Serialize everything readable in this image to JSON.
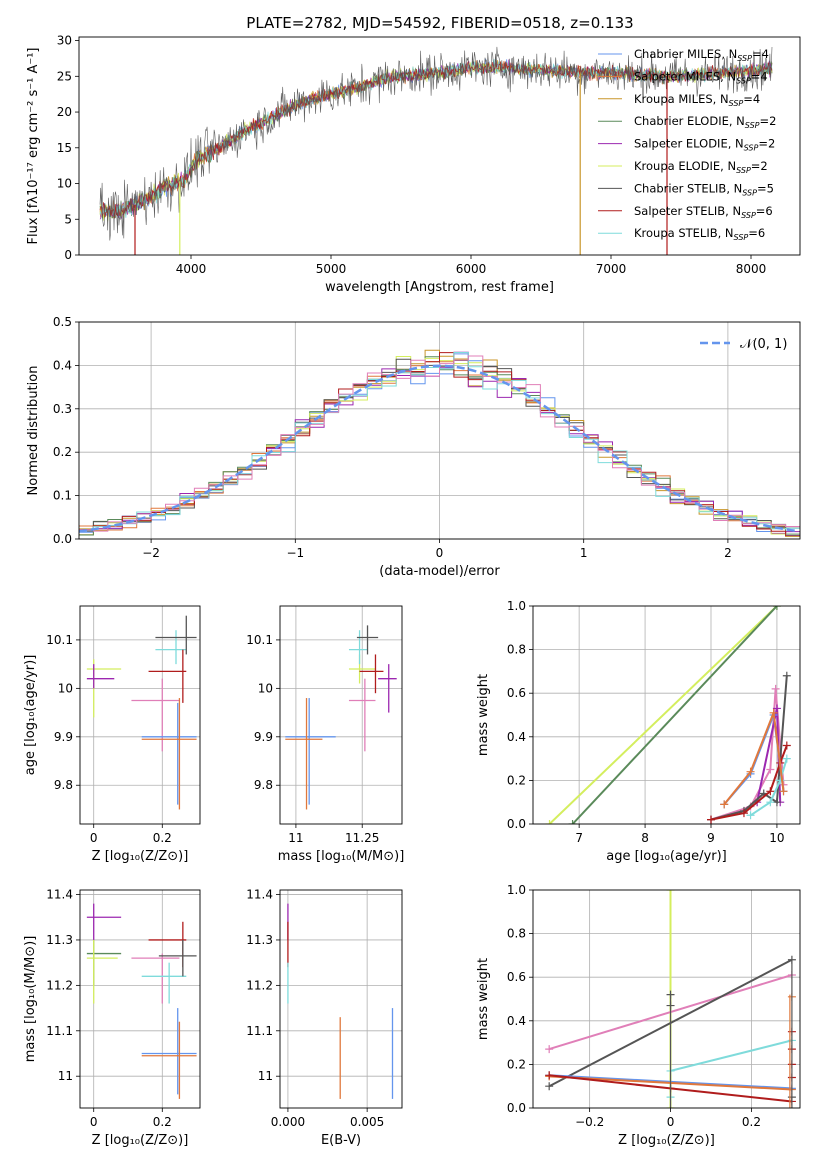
{
  "figure": {
    "title": "PLATE=2782, MJD=54592, FIBERID=0518, z=0.133"
  },
  "colors": {
    "chab_miles": "#6495ed",
    "salp_miles": "#e0783c",
    "krou_miles": "#c8962a",
    "chab_elodie": "#5a8a5a",
    "salp_elodie": "#9c27b0",
    "krou_elodie": "#d4ee5e",
    "chab_stelib": "#555555",
    "salp_stelib": "#b01c1c",
    "krou_stelib": "#7fdbdb",
    "pink": "#e07fb8",
    "normal_curve": "#6495ed"
  },
  "chart_data": [
    {
      "id": "spectrum",
      "type": "line",
      "xlabel": "wavelength [Angstrom, rest frame]",
      "ylabel": "Flux [fλ10⁻¹⁷ erg cm⁻² s⁻¹ A⁻¹]",
      "xlim": [
        3200,
        8350
      ],
      "ylim": [
        0,
        30.5
      ],
      "xticks": [
        4000,
        5000,
        6000,
        7000,
        8000
      ],
      "yticks": [
        0,
        5,
        10,
        15,
        20,
        25,
        30
      ],
      "grid": false,
      "legend_position": "top-right",
      "legend": [
        {
          "pre": "Chabrier MILES, N",
          "post": "=4",
          "color": "chab_miles"
        },
        {
          "pre": "Salpeter MILES, N",
          "post": "=4",
          "color": "salp_miles"
        },
        {
          "pre": "Kroupa MILES, N",
          "post": "=4",
          "color": "krou_miles"
        },
        {
          "pre": "Chabrier ELODIE, N",
          "post": "=2",
          "color": "chab_elodie"
        },
        {
          "pre": "Salpeter ELODIE, N",
          "post": "=2",
          "color": "salp_elodie"
        },
        {
          "pre": "Kroupa ELODIE, N",
          "post": "=2",
          "color": "krou_elodie"
        },
        {
          "pre": "Chabrier STELIB, N",
          "post": "=5",
          "color": "chab_stelib"
        },
        {
          "pre": "Salpeter STELIB, N",
          "post": "=6",
          "color": "salp_stelib"
        },
        {
          "pre": "Kroupa STELIB, N",
          "post": "=6",
          "color": "krou_stelib"
        }
      ],
      "continuum": [
        [
          3350,
          6.0
        ],
        [
          3500,
          6.2
        ],
        [
          3600,
          7.0
        ],
        [
          3700,
          8.0
        ],
        [
          3800,
          9.5
        ],
        [
          3950,
          10.5
        ],
        [
          4050,
          13.5
        ],
        [
          4200,
          15.0
        ],
        [
          4400,
          17.5
        ],
        [
          4600,
          19.5
        ],
        [
          4800,
          21.5
        ],
        [
          5000,
          22.5
        ],
        [
          5200,
          23.5
        ],
        [
          5400,
          24.8
        ],
        [
          5600,
          25.2
        ],
        [
          5800,
          25.6
        ],
        [
          6000,
          26.2
        ],
        [
          6200,
          26.3
        ],
        [
          6400,
          26.0
        ],
        [
          6600,
          25.8
        ],
        [
          6800,
          25.5
        ],
        [
          7000,
          25.5
        ],
        [
          7200,
          25.2
        ],
        [
          7400,
          25.0
        ],
        [
          7600,
          25.2
        ],
        [
          7800,
          25.5
        ],
        [
          8000,
          25.8
        ],
        [
          8150,
          26.2
        ]
      ],
      "drops": [
        {
          "x": 3600,
          "color": "salp_stelib"
        },
        {
          "x": 3920,
          "color": "krou_elodie"
        },
        {
          "x": 6780,
          "color": "krou_miles"
        },
        {
          "x": 7400,
          "color": "salp_stelib"
        }
      ]
    },
    {
      "id": "residuals",
      "type": "histogram",
      "xlabel": "(data-model)/error",
      "ylabel": "Normed distribution",
      "xlim": [
        -2.5,
        2.5
      ],
      "ylim": [
        0,
        0.5
      ],
      "xticks": [
        -2,
        -1,
        0,
        1,
        2
      ],
      "yticks": [
        0.0,
        0.1,
        0.2,
        0.3,
        0.4,
        0.5
      ],
      "grid": true,
      "legend": "𝒩(0, 1)",
      "legend_position": "top-right",
      "bin_width": 0.1,
      "reference_curve": "normal(0,1)"
    },
    {
      "id": "age_vs_Z",
      "type": "errorbar",
      "xlabel": "Z [log₁₀(Z/Z⊙)]",
      "ylabel": "age  [log₁₀(age/yr)]",
      "xlim": [
        -0.04,
        0.31
      ],
      "ylim": [
        9.72,
        10.17
      ],
      "xticks": [
        0.0,
        0.2
      ],
      "yticks": [
        9.8,
        9.9,
        10.0,
        10.1
      ],
      "grid": true,
      "points": [
        {
          "x": 0.0,
          "xlo": -0.02,
          "xhi": 0.08,
          "y": 10.04,
          "ylo": 9.94,
          "yhi": 10.06,
          "color": "krou_elodie"
        },
        {
          "x": 0.0,
          "xlo": -0.02,
          "xhi": 0.06,
          "y": 10.02,
          "ylo": 10.0,
          "yhi": 10.05,
          "color": "salp_elodie"
        },
        {
          "x": 0.2,
          "xlo": 0.11,
          "xhi": 0.25,
          "y": 9.975,
          "ylo": 9.87,
          "yhi": 10.02,
          "color": "pink"
        },
        {
          "x": 0.24,
          "xlo": 0.18,
          "xhi": 0.27,
          "y": 10.08,
          "ylo": 10.05,
          "yhi": 10.12,
          "color": "krou_stelib"
        },
        {
          "x": 0.27,
          "xlo": 0.18,
          "xhi": 0.3,
          "y": 10.105,
          "ylo": 10.07,
          "yhi": 10.15,
          "color": "chab_stelib"
        },
        {
          "x": 0.26,
          "xlo": 0.16,
          "xhi": 0.27,
          "y": 10.035,
          "ylo": 9.97,
          "yhi": 10.08,
          "color": "salp_stelib"
        },
        {
          "x": 0.245,
          "xlo": 0.14,
          "xhi": 0.3,
          "y": 9.9,
          "ylo": 9.76,
          "yhi": 9.97,
          "color": "chab_miles"
        },
        {
          "x": 0.25,
          "xlo": 0.14,
          "xhi": 0.3,
          "y": 9.895,
          "ylo": 9.75,
          "yhi": 9.98,
          "color": "salp_miles"
        }
      ]
    },
    {
      "id": "age_vs_mass",
      "type": "errorbar",
      "xlabel": "mass [log₁₀(M/M⊙)]",
      "ylabel": "",
      "xlim": [
        10.94,
        11.4
      ],
      "ylim": [
        9.72,
        10.17
      ],
      "xticks": [
        11.0,
        11.25
      ],
      "yticks": [
        9.8,
        9.9,
        10.0,
        10.1
      ],
      "grid": true,
      "points": [
        {
          "x": 11.05,
          "xlo": 10.96,
          "xhi": 11.15,
          "y": 9.9,
          "ylo": 9.76,
          "yhi": 9.98,
          "color": "chab_miles"
        },
        {
          "x": 11.04,
          "xlo": 10.96,
          "xhi": 11.1,
          "y": 9.895,
          "ylo": 9.75,
          "yhi": 9.98,
          "color": "salp_miles"
        },
        {
          "x": 11.26,
          "xlo": 11.2,
          "xhi": 11.3,
          "y": 9.975,
          "ylo": 9.87,
          "yhi": 10.02,
          "color": "pink"
        },
        {
          "x": 11.24,
          "xlo": 11.2,
          "xhi": 11.3,
          "y": 10.04,
          "ylo": 10.01,
          "yhi": 10.07,
          "color": "krou_elodie"
        },
        {
          "x": 11.24,
          "xlo": 11.2,
          "xhi": 11.27,
          "y": 10.08,
          "ylo": 10.05,
          "yhi": 10.12,
          "color": "krou_stelib"
        },
        {
          "x": 11.27,
          "xlo": 11.23,
          "xhi": 11.31,
          "y": 10.105,
          "ylo": 10.07,
          "yhi": 10.13,
          "color": "chab_stelib"
        },
        {
          "x": 11.3,
          "xlo": 11.24,
          "xhi": 11.33,
          "y": 10.035,
          "ylo": 9.99,
          "yhi": 10.07,
          "color": "salp_stelib"
        },
        {
          "x": 11.35,
          "xlo": 11.31,
          "xhi": 11.38,
          "y": 10.02,
          "ylo": 9.95,
          "yhi": 10.05,
          "color": "salp_elodie"
        }
      ]
    },
    {
      "id": "weight_vs_age",
      "type": "line",
      "xlabel": "age  [log₁₀(age/yr)]",
      "ylabel": "mass weight",
      "xlim": [
        6.3,
        10.35
      ],
      "ylim": [
        0,
        1
      ],
      "xticks": [
        7,
        8,
        9,
        10
      ],
      "yticks": [
        0.0,
        0.2,
        0.4,
        0.6,
        0.8,
        1.0
      ],
      "grid": true,
      "series": [
        {
          "color": "krou_elodie",
          "points": [
            [
              6.55,
              0.0
            ],
            [
              10.0,
              1.0
            ]
          ]
        },
        {
          "color": "chab_elodie",
          "points": [
            [
              6.9,
              0.0
            ],
            [
              10.0,
              1.0
            ]
          ]
        },
        {
          "color": "pink",
          "points": [
            [
              9.0,
              0.02
            ],
            [
              9.6,
              0.08
            ],
            [
              9.9,
              0.25
            ],
            [
              9.98,
              0.62
            ],
            [
              10.1,
              0.18
            ]
          ]
        },
        {
          "color": "salp_elodie",
          "points": [
            [
              9.7,
              0.1
            ],
            [
              10.0,
              0.53
            ],
            [
              10.05,
              0.1
            ]
          ]
        },
        {
          "color": "chab_stelib",
          "points": [
            [
              9.0,
              0.02
            ],
            [
              9.5,
              0.06
            ],
            [
              9.8,
              0.14
            ],
            [
              10.0,
              0.1
            ],
            [
              10.15,
              0.68
            ]
          ]
        },
        {
          "color": "salp_stelib",
          "points": [
            [
              9.0,
              0.02
            ],
            [
              9.5,
              0.05
            ],
            [
              9.9,
              0.15
            ],
            [
              10.05,
              0.28
            ],
            [
              10.15,
              0.36
            ]
          ]
        },
        {
          "color": "krou_stelib",
          "points": [
            [
              9.6,
              0.04
            ],
            [
              9.9,
              0.1
            ],
            [
              10.05,
              0.2
            ],
            [
              10.15,
              0.3
            ]
          ]
        },
        {
          "color": "chab_miles",
          "points": [
            [
              9.2,
              0.09
            ],
            [
              9.6,
              0.23
            ],
            [
              9.95,
              0.5
            ],
            [
              10.1,
              0.15
            ]
          ]
        },
        {
          "color": "salp_miles",
          "points": [
            [
              9.2,
              0.09
            ],
            [
              9.6,
              0.24
            ],
            [
              9.95,
              0.51
            ],
            [
              10.1,
              0.15
            ]
          ]
        }
      ]
    },
    {
      "id": "mass_vs_Z",
      "type": "errorbar",
      "xlabel": "Z [log₁₀(Z/Z⊙)]",
      "ylabel": "mass [log₁₀(M/M⊙)]",
      "xlim": [
        -0.04,
        0.31
      ],
      "ylim": [
        10.93,
        11.41
      ],
      "xticks": [
        0.0,
        0.2
      ],
      "yticks": [
        11.0,
        11.1,
        11.2,
        11.3,
        11.4
      ],
      "grid": true,
      "points": [
        {
          "x": 0.0,
          "xlo": -0.02,
          "xhi": 0.08,
          "y": 11.35,
          "ylo": 11.3,
          "yhi": 11.38,
          "color": "salp_elodie"
        },
        {
          "x": 0.0,
          "xlo": -0.02,
          "xhi": 0.08,
          "y": 11.27,
          "ylo": 11.2,
          "yhi": 11.3,
          "color": "chab_elodie"
        },
        {
          "x": 0.0,
          "xlo": -0.02,
          "xhi": 0.07,
          "y": 11.26,
          "ylo": 11.16,
          "yhi": 11.3,
          "color": "krou_elodie"
        },
        {
          "x": 0.2,
          "xlo": 0.11,
          "xhi": 0.25,
          "y": 11.26,
          "ylo": 11.16,
          "yhi": 11.27,
          "color": "pink"
        },
        {
          "x": 0.22,
          "xlo": 0.14,
          "xhi": 0.27,
          "y": 11.22,
          "ylo": 11.16,
          "yhi": 11.25,
          "color": "krou_stelib"
        },
        {
          "x": 0.26,
          "xlo": 0.16,
          "xhi": 0.27,
          "y": 11.3,
          "ylo": 11.24,
          "yhi": 11.34,
          "color": "salp_stelib"
        },
        {
          "x": 0.26,
          "xlo": 0.19,
          "xhi": 0.3,
          "y": 11.265,
          "ylo": 11.22,
          "yhi": 11.3,
          "color": "chab_stelib"
        },
        {
          "x": 0.245,
          "xlo": 0.14,
          "xhi": 0.3,
          "y": 11.05,
          "ylo": 10.96,
          "yhi": 11.15,
          "color": "chab_miles"
        },
        {
          "x": 0.25,
          "xlo": 0.14,
          "xhi": 0.3,
          "y": 11.045,
          "ylo": 10.95,
          "yhi": 11.12,
          "color": "salp_miles"
        }
      ]
    },
    {
      "id": "mass_vs_ebv",
      "type": "errorbar",
      "xlabel": "E(B-V)",
      "ylabel": "",
      "xlim": [
        -0.0005,
        0.0072
      ],
      "ylim": [
        10.93,
        11.41
      ],
      "xticks": [
        0.0,
        0.005
      ],
      "xtick_labels": [
        "0.000",
        "0.005"
      ],
      "yticks": [
        11.0,
        11.1,
        11.2,
        11.3,
        11.4
      ],
      "grid": true,
      "points": [
        {
          "x": 0.0,
          "xlo": 0.0,
          "xhi": 0.0,
          "y": 11.35,
          "ylo": 11.3,
          "yhi": 11.38,
          "color": "salp_elodie"
        },
        {
          "x": 0.0,
          "xlo": 0.0,
          "xhi": 0.0,
          "y": 11.3,
          "ylo": 11.24,
          "yhi": 11.34,
          "color": "salp_stelib"
        },
        {
          "x": 0.0,
          "xlo": 0.0,
          "xhi": 0.0,
          "y": 11.22,
          "ylo": 11.16,
          "yhi": 11.25,
          "color": "krou_stelib"
        },
        {
          "x": 0.0033,
          "xlo": 0.0033,
          "xhi": 0.0033,
          "y": 11.045,
          "ylo": 10.95,
          "yhi": 11.13,
          "color": "salp_miles"
        },
        {
          "x": 0.0066,
          "xlo": 0.0066,
          "xhi": 0.0066,
          "y": 11.05,
          "ylo": 10.95,
          "yhi": 11.15,
          "color": "chab_miles"
        }
      ]
    },
    {
      "id": "weight_vs_Z",
      "type": "line",
      "xlabel": "Z [log₁₀(Z/Z⊙)]",
      "ylabel": "mass weight",
      "xlim": [
        -0.34,
        0.32
      ],
      "ylim": [
        0,
        1
      ],
      "xticks": [
        -0.2,
        0.0,
        0.2
      ],
      "yticks": [
        0.0,
        0.2,
        0.4,
        0.6,
        0.8,
        1.0
      ],
      "grid": true,
      "series": [
        {
          "color": "krou_elodie",
          "points": [
            [
              0.0,
              0.0
            ],
            [
              0.0,
              1.0
            ]
          ]
        },
        {
          "color": "pink",
          "points": [
            [
              -0.3,
              0.27
            ],
            [
              0.3,
              0.61
            ]
          ]
        },
        {
          "color": "chab_stelib",
          "points": [
            [
              -0.3,
              0.1
            ],
            [
              0.3,
              0.68
            ]
          ]
        },
        {
          "color": "krou_stelib",
          "points": [
            [
              0.0,
              0.17
            ],
            [
              0.3,
              0.31
            ]
          ]
        },
        {
          "color": "chab_miles",
          "points": [
            [
              -0.3,
              0.15
            ],
            [
              0.3,
              0.09
            ]
          ]
        },
        {
          "color": "salp_miles",
          "points": [
            [
              -0.3,
              0.145
            ],
            [
              0.3,
              0.085
            ]
          ]
        },
        {
          "color": "salp_stelib",
          "points": [
            [
              -0.3,
              0.15
            ],
            [
              0.0,
              0.09
            ],
            [
              0.3,
              0.03
            ]
          ]
        }
      ],
      "markers": [
        {
          "x": 0.0,
          "y": 0.52,
          "color": "chab_stelib"
        },
        {
          "x": 0.0,
          "y": 0.47,
          "color": "chab_stelib"
        },
        {
          "x": 0.0,
          "y": 0.05,
          "color": "krou_stelib"
        },
        {
          "x": 0.3,
          "y": 0.51,
          "color": "salp_miles"
        },
        {
          "x": 0.3,
          "y": 0.35,
          "color": "salp_stelib"
        },
        {
          "x": 0.3,
          "y": 0.27,
          "color": "salp_stelib"
        },
        {
          "x": 0.3,
          "y": 0.2,
          "color": "salp_stelib"
        },
        {
          "x": 0.3,
          "y": 0.14,
          "color": "salp_stelib"
        },
        {
          "x": 0.3,
          "y": 0.05,
          "color": "chab_stelib"
        }
      ]
    }
  ]
}
